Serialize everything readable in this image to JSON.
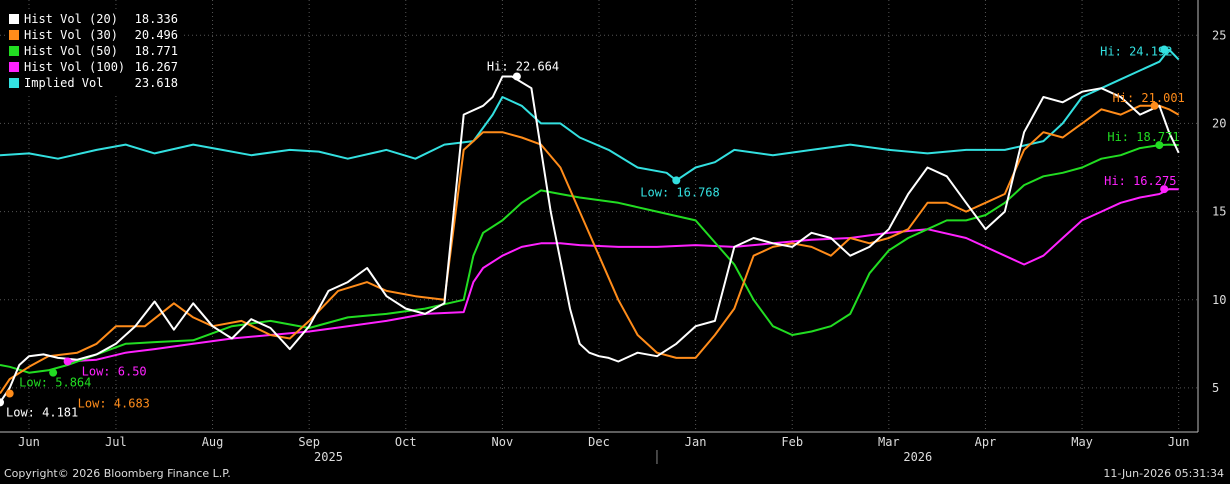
{
  "footer": {
    "copyright": "Copyright© 2026 Bloomberg Finance L.P.",
    "timestamp": "11-Jun-2026 05:31:34"
  },
  "chart_data": {
    "type": "line",
    "title": "",
    "xlabel": "",
    "ylabel": "",
    "x_range": [
      0,
      12.4
    ],
    "ylim": [
      2.5,
      27
    ],
    "y_ticks": [
      5,
      10,
      15,
      20,
      25
    ],
    "grid": true,
    "legend_position": "top-left",
    "month_ticks": [
      {
        "label": "Jun",
        "x": 0.3
      },
      {
        "label": "Jul",
        "x": 1.2
      },
      {
        "label": "Aug",
        "x": 2.2
      },
      {
        "label": "Sep",
        "x": 3.2
      },
      {
        "label": "Oct",
        "x": 4.2
      },
      {
        "label": "Nov",
        "x": 5.2
      },
      {
        "label": "Dec",
        "x": 6.2
      },
      {
        "label": "Jan",
        "x": 7.2
      },
      {
        "label": "Feb",
        "x": 8.2
      },
      {
        "label": "Mar",
        "x": 9.2
      },
      {
        "label": "Apr",
        "x": 10.2
      },
      {
        "label": "May",
        "x": 11.2
      },
      {
        "label": "Jun",
        "x": 12.2
      }
    ],
    "year_labels": [
      {
        "label": "2025",
        "x": 3.4
      },
      {
        "label": "2026",
        "x": 9.5
      }
    ],
    "year_divider_x": 6.8,
    "series": [
      {
        "name": "Hist Vol (20)",
        "legend_value": "18.336",
        "color": "#ffffff",
        "x": [
          0,
          0.1,
          0.2,
          0.3,
          0.45,
          0.6,
          0.8,
          1.0,
          1.2,
          1.4,
          1.6,
          1.8,
          2.0,
          2.2,
          2.4,
          2.6,
          2.8,
          3.0,
          3.2,
          3.4,
          3.6,
          3.8,
          4.0,
          4.2,
          4.4,
          4.6,
          4.8,
          5.0,
          5.1,
          5.2,
          5.3,
          5.5,
          5.7,
          5.9,
          6.0,
          6.1,
          6.2,
          6.3,
          6.4,
          6.6,
          6.8,
          7.0,
          7.2,
          7.4,
          7.6,
          7.8,
          8.0,
          8.2,
          8.4,
          8.6,
          8.8,
          9.0,
          9.2,
          9.4,
          9.6,
          9.8,
          10.0,
          10.2,
          10.4,
          10.6,
          10.8,
          11.0,
          11.2,
          11.4,
          11.6,
          11.8,
          12.0,
          12.1,
          12.2
        ],
        "y": [
          4.181,
          5.0,
          6.3,
          6.8,
          6.9,
          6.7,
          6.6,
          6.9,
          7.5,
          8.5,
          9.9,
          8.3,
          9.8,
          8.5,
          7.8,
          8.9,
          8.4,
          7.2,
          8.5,
          10.5,
          11.0,
          11.8,
          10.2,
          9.5,
          9.2,
          9.8,
          20.5,
          21.0,
          21.5,
          22.664,
          22.664,
          22.0,
          15.0,
          9.5,
          7.5,
          7.0,
          6.8,
          6.7,
          6.5,
          7.0,
          6.8,
          7.5,
          8.5,
          8.8,
          13.0,
          13.5,
          13.2,
          13.0,
          13.8,
          13.5,
          12.5,
          13.0,
          14.0,
          16.0,
          17.5,
          17.0,
          15.5,
          14.0,
          15.0,
          19.5,
          21.5,
          21.2,
          21.8,
          22.0,
          21.5,
          20.5,
          21.0,
          19.5,
          18.336
        ]
      },
      {
        "name": "Hist Vol (30)",
        "legend_value": "20.496",
        "color": "#ff8c1a",
        "x": [
          0,
          0.1,
          0.3,
          0.5,
          0.8,
          1.0,
          1.2,
          1.5,
          1.8,
          2.0,
          2.2,
          2.5,
          2.8,
          3.0,
          3.2,
          3.5,
          3.8,
          4.0,
          4.3,
          4.6,
          4.8,
          4.9,
          5.0,
          5.2,
          5.4,
          5.6,
          5.8,
          6.0,
          6.2,
          6.4,
          6.6,
          6.8,
          7.0,
          7.2,
          7.4,
          7.6,
          7.8,
          8.0,
          8.2,
          8.4,
          8.6,
          8.8,
          9.0,
          9.2,
          9.4,
          9.6,
          9.8,
          10.0,
          10.2,
          10.4,
          10.6,
          10.8,
          11.0,
          11.2,
          11.4,
          11.6,
          11.8,
          12.0,
          12.1,
          12.2
        ],
        "y": [
          4.683,
          5.5,
          6.2,
          6.8,
          7.0,
          7.5,
          8.5,
          8.5,
          9.8,
          9.0,
          8.5,
          8.8,
          8.0,
          7.8,
          8.8,
          10.5,
          11.0,
          10.5,
          10.2,
          10.0,
          18.5,
          19.0,
          19.5,
          19.5,
          19.2,
          18.8,
          17.5,
          15.0,
          12.5,
          10.0,
          8.0,
          7.0,
          6.7,
          6.7,
          8.0,
          9.5,
          12.5,
          13.0,
          13.2,
          13.0,
          12.5,
          13.5,
          13.2,
          13.5,
          14.0,
          15.5,
          15.5,
          15.0,
          15.5,
          16.0,
          18.5,
          19.5,
          19.2,
          20.0,
          20.8,
          20.5,
          21.001,
          21.0,
          20.8,
          20.496
        ]
      },
      {
        "name": "Hist Vol (50)",
        "legend_value": "18.771",
        "color": "#22dd22",
        "x": [
          0,
          0.1,
          0.3,
          0.5,
          0.7,
          1.0,
          1.3,
          1.6,
          2.0,
          2.4,
          2.8,
          3.2,
          3.6,
          4.0,
          4.4,
          4.8,
          4.9,
          5.0,
          5.2,
          5.4,
          5.6,
          5.8,
          6.0,
          6.4,
          6.8,
          7.2,
          7.6,
          7.8,
          8.0,
          8.2,
          8.4,
          8.6,
          8.8,
          9.0,
          9.2,
          9.4,
          9.6,
          9.8,
          10.0,
          10.2,
          10.4,
          10.6,
          10.8,
          11.0,
          11.2,
          11.4,
          11.6,
          11.8,
          12.0,
          12.1,
          12.2
        ],
        "y": [
          6.3,
          6.2,
          5.864,
          6.0,
          6.3,
          6.9,
          7.5,
          7.6,
          7.7,
          8.5,
          8.8,
          8.4,
          9.0,
          9.2,
          9.5,
          10.0,
          12.5,
          13.8,
          14.5,
          15.5,
          16.2,
          16.0,
          15.8,
          15.5,
          15.0,
          14.5,
          12.0,
          10.0,
          8.5,
          8.0,
          8.2,
          8.5,
          9.2,
          11.5,
          12.8,
          13.5,
          14.0,
          14.5,
          14.5,
          14.8,
          15.5,
          16.5,
          17.0,
          17.2,
          17.5,
          18.0,
          18.2,
          18.6,
          18.771,
          18.8,
          18.771
        ]
      },
      {
        "name": "Hist Vol (100)",
        "legend_value": "16.267",
        "color": "#ff22ff",
        "x": [
          0.7,
          1.0,
          1.3,
          1.6,
          2.0,
          2.4,
          2.8,
          3.2,
          3.6,
          4.0,
          4.4,
          4.8,
          4.9,
          5.0,
          5.2,
          5.4,
          5.6,
          5.8,
          6.0,
          6.4,
          6.8,
          7.2,
          7.6,
          8.0,
          8.4,
          8.8,
          9.2,
          9.6,
          10.0,
          10.4,
          10.6,
          10.8,
          11.0,
          11.2,
          11.4,
          11.6,
          11.8,
          12.0,
          12.1,
          12.2
        ],
        "y": [
          6.5,
          6.6,
          7.0,
          7.2,
          7.5,
          7.8,
          8.0,
          8.2,
          8.5,
          8.8,
          9.2,
          9.3,
          11.0,
          11.8,
          12.5,
          13.0,
          13.2,
          13.2,
          13.1,
          13.0,
          13.0,
          13.1,
          13.0,
          13.2,
          13.4,
          13.5,
          13.8,
          14.0,
          13.5,
          12.5,
          12.0,
          12.5,
          13.5,
          14.5,
          15.0,
          15.5,
          15.8,
          16.0,
          16.275,
          16.267
        ]
      },
      {
        "name": "Implied Vol",
        "legend_value": "23.618",
        "color": "#33e0e0",
        "x": [
          0,
          0.3,
          0.6,
          1.0,
          1.3,
          1.6,
          2.0,
          2.3,
          2.6,
          3.0,
          3.3,
          3.6,
          4.0,
          4.3,
          4.6,
          4.9,
          5.1,
          5.2,
          5.4,
          5.6,
          5.8,
          6.0,
          6.3,
          6.6,
          6.9,
          7.0,
          7.2,
          7.4,
          7.6,
          8.0,
          8.4,
          8.8,
          9.2,
          9.6,
          10.0,
          10.4,
          10.8,
          11.0,
          11.2,
          11.4,
          11.6,
          11.8,
          12.0,
          12.1,
          12.2
        ],
        "y": [
          18.2,
          18.3,
          18.0,
          18.5,
          18.8,
          18.3,
          18.8,
          18.5,
          18.2,
          18.5,
          18.4,
          18.0,
          18.5,
          18.0,
          18.8,
          19.0,
          20.5,
          21.5,
          21.0,
          20.0,
          20.0,
          19.2,
          18.5,
          17.5,
          17.2,
          16.768,
          17.5,
          17.8,
          18.5,
          18.2,
          18.5,
          18.8,
          18.5,
          18.3,
          18.5,
          18.5,
          19.0,
          20.0,
          21.5,
          22.0,
          22.5,
          23.0,
          23.5,
          24.192,
          23.618
        ]
      }
    ],
    "annotations": [
      {
        "label": "Hi: 22.664",
        "x": 5.35,
        "y": 22.664,
        "series": 0
      },
      {
        "label": "Low: 4.181",
        "x": 0,
        "y": 4.181,
        "series": 0
      },
      {
        "label": "Low: 4.683",
        "x": 0.1,
        "y": 4.683,
        "series": 1
      },
      {
        "label": "Hi: 21.001",
        "x": 11.95,
        "y": 21.001,
        "series": 1
      },
      {
        "label": "Low: 5.864",
        "x": 0.55,
        "y": 5.864,
        "series": 2
      },
      {
        "label": "Hi: 18.771",
        "x": 12.0,
        "y": 18.771,
        "series": 2
      },
      {
        "label": "Low: 6.50",
        "x": 0.7,
        "y": 6.5,
        "series": 3
      },
      {
        "label": "Hi: 16.275",
        "x": 12.05,
        "y": 16.275,
        "series": 3
      },
      {
        "label": "Low: 16.768",
        "x": 7.0,
        "y": 16.768,
        "series": 4
      },
      {
        "label": "Hi: 24.192",
        "x": 12.05,
        "y": 24.192,
        "series": 4
      }
    ]
  }
}
